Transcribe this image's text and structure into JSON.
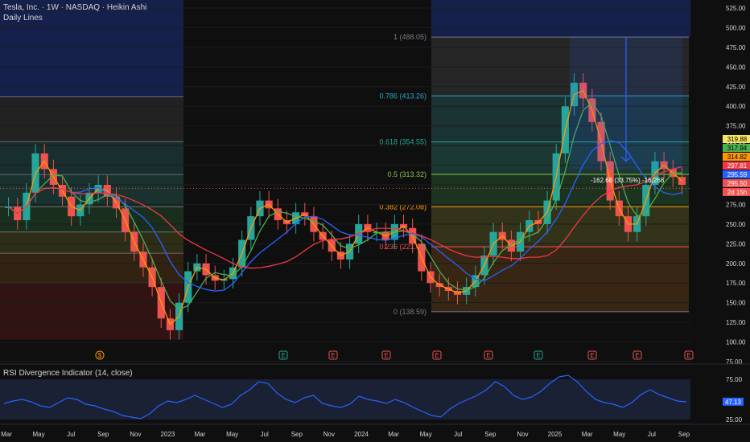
{
  "header": {
    "title": "Tesla, Inc. · 1W · NASDAQ · Heikin Ashi",
    "study": "Daily Lines"
  },
  "colors": {
    "bg": "#0f0f0f",
    "up": "#26a69a",
    "down": "#ef5350",
    "axis_text": "#d1d4dc",
    "ma_fast": "#ff9800",
    "ma_mid": "#4caf50",
    "ma_slow": "#2962ff",
    "ma_long": "#f23645",
    "rsi": "#2962ff",
    "rsi_band": "#1f2a44"
  },
  "chart_data": [
    {
      "type": "candlestick",
      "title": "Tesla, Inc. · 1W · NASDAQ · Heikin Ashi",
      "ylim": [
        75,
        525
      ],
      "yticks": [
        75,
        100,
        125,
        150,
        175,
        200,
        225,
        250,
        275,
        300,
        325,
        350,
        375,
        400,
        425,
        450,
        475,
        500,
        525
      ],
      "x_labels": [
        "Mar",
        "May",
        "Jul",
        "Sep",
        "Nov",
        "2023",
        "Mar",
        "May",
        "Jul",
        "Sep",
        "Nov",
        "2024",
        "Mar",
        "May",
        "Jul",
        "Sep",
        "Nov",
        "2025",
        "Mar",
        "May",
        "Jul",
        "Sep"
      ],
      "closes": [
        272,
        255,
        290,
        340,
        320,
        300,
        285,
        260,
        275,
        290,
        300,
        285,
        270,
        240,
        215,
        195,
        170,
        130,
        115,
        150,
        190,
        200,
        185,
        178,
        180,
        195,
        230,
        260,
        280,
        270,
        255,
        250,
        265,
        260,
        240,
        230,
        215,
        205,
        225,
        250,
        240,
        240,
        230,
        250,
        245,
        225,
        190,
        175,
        170,
        165,
        160,
        170,
        185,
        210,
        240,
        230,
        215,
        240,
        255,
        250,
        280,
        340,
        400,
        430,
        410,
        380,
        330,
        280,
        260,
        240,
        260,
        300,
        330,
        320,
        310,
        300
      ],
      "fib_levels": [
        {
          "ratio": "1",
          "price": 488.05,
          "label": "1 (488.05)"
        },
        {
          "ratio": "0.786",
          "price": 413.26,
          "label": "0.786 (413.26)"
        },
        {
          "ratio": "0.618",
          "price": 354.55,
          "label": "0.618 (354.55)"
        },
        {
          "ratio": "0.5",
          "price": 313.32,
          "label": "0.5 (313.32)"
        },
        {
          "ratio": "0.382",
          "price": 272.08,
          "label": "0.382 (272.08)"
        },
        {
          "ratio": "0.236",
          "price": 221.06,
          "label": "0.236 (221.06)"
        },
        {
          "ratio": "0",
          "price": 138.59,
          "label": "0 (138.59)"
        }
      ],
      "measure_label": "-162.68 (33.75%) -16,268",
      "price_labels": [
        {
          "value": "319.88",
          "bg": "#f5e663",
          "fg": "#000000"
        },
        {
          "value": "317.94",
          "bg": "#4caf50",
          "fg": "#000000"
        },
        {
          "value": "314.82",
          "bg": "#ff9800",
          "fg": "#000000"
        },
        {
          "value": "297.81",
          "bg": "#f23645",
          "fg": "#ffffff"
        },
        {
          "value": "295.59",
          "bg": "#2962ff",
          "fg": "#ffffff"
        },
        {
          "value": "295.50",
          "bg": "#ef5350",
          "fg": "#ffffff"
        },
        {
          "value": "2d 15h",
          "bg": "#ef5350",
          "fg": "#ffffff"
        }
      ],
      "events": [
        "$",
        "E",
        "E",
        "E",
        "E",
        "E",
        "E",
        "E",
        "E",
        "E"
      ]
    },
    {
      "type": "line",
      "title": "RSI Divergence Indicator (14, close)",
      "ylim": [
        25,
        75
      ],
      "yticks": [
        25,
        75
      ],
      "value_label": "47.13",
      "values": [
        45,
        48,
        50,
        47,
        42,
        40,
        46,
        52,
        50,
        44,
        42,
        38,
        35,
        30,
        28,
        26,
        32,
        42,
        48,
        46,
        50,
        55,
        50,
        45,
        40,
        44,
        55,
        62,
        72,
        70,
        58,
        50,
        46,
        52,
        55,
        45,
        42,
        40,
        44,
        54,
        50,
        48,
        45,
        50,
        46,
        40,
        35,
        30,
        28,
        38,
        45,
        50,
        55,
        62,
        72,
        66,
        55,
        50,
        53,
        60,
        70,
        78,
        80,
        72,
        60,
        50,
        46,
        44,
        40,
        46,
        56,
        62,
        56,
        52,
        48,
        47
      ]
    }
  ]
}
